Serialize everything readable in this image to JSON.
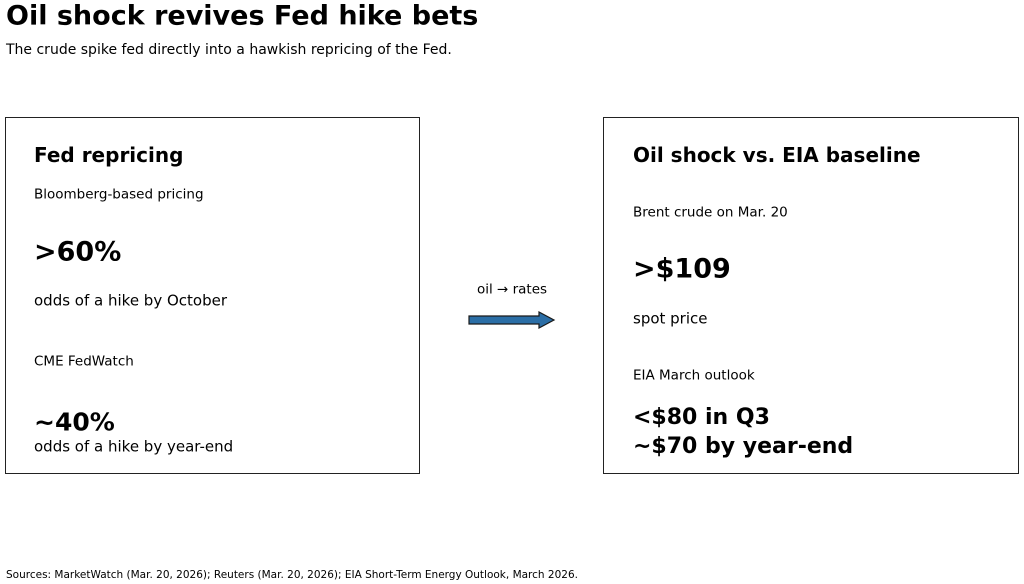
{
  "title": "Oil shock revives Fed hike bets",
  "subtitle": "The crude spike fed directly into a hawkish repricing of the Fed.",
  "left_panel": {
    "heading": "Fed repricing",
    "source1": "Bloomberg-based pricing",
    "value1": ">60%",
    "desc1": "odds of a hike by October",
    "source2": "CME FedWatch",
    "value2": "~40%",
    "desc2": "odds of a hike by year-end"
  },
  "connector": {
    "label": "oil → rates",
    "arrow_color": "#2b6ea6",
    "icon": "right-arrow-icon"
  },
  "right_panel": {
    "heading": "Oil shock vs. EIA baseline",
    "source1": "Brent crude on Mar. 20",
    "value1": ">$109",
    "desc1": "spot price",
    "source2": "EIA March outlook",
    "value2_line1": "<$80 in Q3",
    "value2_line2": "~$70 by year-end"
  },
  "footer": "Sources: MarketWatch (Mar. 20, 2026); Reuters (Mar. 20, 2026); EIA Short-Term Energy Outlook, March 2026."
}
